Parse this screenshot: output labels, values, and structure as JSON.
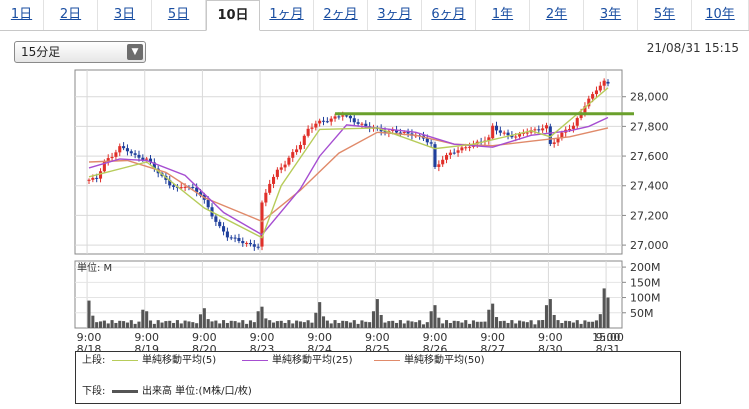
{
  "tabs": [
    {
      "label": "1日",
      "active": false
    },
    {
      "label": "2日",
      "active": false
    },
    {
      "label": "3日",
      "active": false
    },
    {
      "label": "5日",
      "active": false
    },
    {
      "label": "10日",
      "active": true
    },
    {
      "label": "1ヶ月",
      "active": false
    },
    {
      "label": "2ヶ月",
      "active": false
    },
    {
      "label": "3ヶ月",
      "active": false
    },
    {
      "label": "6ヶ月",
      "active": false
    },
    {
      "label": "1年",
      "active": false
    },
    {
      "label": "2年",
      "active": false
    },
    {
      "label": "3年",
      "active": false
    },
    {
      "label": "5年",
      "active": false
    },
    {
      "label": "10年",
      "active": false
    }
  ],
  "interval_select": {
    "value": "15分足"
  },
  "timestamp": "21/08/31 15:15",
  "legend": {
    "upper_label": "上段:",
    "lower_label": "下段:",
    "items": [
      {
        "label": "単純移動平均(5)",
        "color": "#b7cc5a"
      },
      {
        "label": "単純移動平均(25)",
        "color": "#a64ed1"
      },
      {
        "label": "単純移動平均(50)",
        "color": "#e08a6a"
      }
    ],
    "volume_item": {
      "label": "出来高 単位:(M株/口/枚)",
      "color": "#555555"
    }
  },
  "chart_data": [
    {
      "type": "candlestick",
      "y_ticks": [
        "28,000",
        "27,800",
        "27,600",
        "27,400",
        "27,200",
        "27,000"
      ],
      "y_tick_values": [
        28000,
        27800,
        27600,
        27400,
        27200,
        27000
      ],
      "ylim": [
        26940,
        28180
      ],
      "x_ticks_time": [
        "9:00",
        "9:00",
        "9:00",
        "9:00",
        "9:00",
        "9:00",
        "9:00",
        "9:00",
        "9:00",
        "9:00",
        "15:00"
      ],
      "x_ticks_date": [
        "8/18",
        "8/19",
        "8/20",
        "8/23",
        "8/24",
        "8/25",
        "8/26",
        "8/27",
        "8/30",
        "8/31",
        ""
      ],
      "colors": {
        "up": "#e0302a",
        "down": "#1f3f9c",
        "resistance": "#6aa02c"
      },
      "resistance_level": 27885,
      "close_path": [
        [
          0,
          27440
        ],
        [
          2,
          27450
        ],
        [
          4,
          27560
        ],
        [
          6,
          27600
        ],
        [
          8,
          27660
        ],
        [
          10,
          27640
        ],
        [
          12,
          27600
        ],
        [
          14,
          27580
        ],
        [
          15,
          27580
        ],
        [
          17,
          27520
        ],
        [
          19,
          27460
        ],
        [
          21,
          27410
        ],
        [
          23,
          27380
        ],
        [
          25,
          27400
        ],
        [
          27,
          27380
        ],
        [
          29,
          27340
        ],
        [
          30,
          27300
        ],
        [
          32,
          27200
        ],
        [
          34,
          27120
        ],
        [
          36,
          27060
        ],
        [
          38,
          27040
        ],
        [
          40,
          27020
        ],
        [
          42,
          27000
        ],
        [
          44,
          26990
        ],
        [
          45,
          27280
        ],
        [
          47,
          27420
        ],
        [
          49,
          27500
        ],
        [
          51,
          27550
        ],
        [
          53,
          27620
        ],
        [
          55,
          27680
        ],
        [
          57,
          27780
        ],
        [
          59,
          27820
        ],
        [
          60,
          27830
        ],
        [
          62,
          27840
        ],
        [
          64,
          27860
        ],
        [
          66,
          27880
        ],
        [
          68,
          27850
        ],
        [
          70,
          27820
        ],
        [
          72,
          27800
        ],
        [
          74,
          27790
        ],
        [
          75,
          27780
        ],
        [
          77,
          27760
        ],
        [
          79,
          27770
        ],
        [
          81,
          27760
        ],
        [
          83,
          27750
        ],
        [
          85,
          27740
        ],
        [
          87,
          27720
        ],
        [
          89,
          27680
        ],
        [
          90,
          27520
        ],
        [
          92,
          27580
        ],
        [
          94,
          27620
        ],
        [
          96,
          27640
        ],
        [
          98,
          27660
        ],
        [
          100,
          27680
        ],
        [
          102,
          27700
        ],
        [
          104,
          27720
        ],
        [
          105,
          27800
        ],
        [
          107,
          27760
        ],
        [
          109,
          27740
        ],
        [
          111,
          27730
        ],
        [
          113,
          27760
        ],
        [
          115,
          27770
        ],
        [
          117,
          27780
        ],
        [
          119,
          27800
        ],
        [
          120,
          27680
        ],
        [
          122,
          27720
        ],
        [
          124,
          27780
        ],
        [
          126,
          27800
        ],
        [
          128,
          27900
        ],
        [
          130,
          27980
        ],
        [
          132,
          28050
        ],
        [
          134,
          28100
        ],
        [
          135,
          28090
        ]
      ],
      "sma_5": [
        [
          0,
          27460
        ],
        [
          15,
          27560
        ],
        [
          30,
          27250
        ],
        [
          45,
          27050
        ],
        [
          50,
          27400
        ],
        [
          60,
          27780
        ],
        [
          75,
          27790
        ],
        [
          90,
          27650
        ],
        [
          100,
          27680
        ],
        [
          115,
          27770
        ],
        [
          120,
          27730
        ],
        [
          130,
          27950
        ],
        [
          135,
          28060
        ]
      ],
      "sma_25": [
        [
          0,
          27520
        ],
        [
          8,
          27580
        ],
        [
          15,
          27570
        ],
        [
          25,
          27470
        ],
        [
          35,
          27220
        ],
        [
          45,
          27070
        ],
        [
          55,
          27380
        ],
        [
          60,
          27600
        ],
        [
          67,
          27810
        ],
        [
          75,
          27790
        ],
        [
          85,
          27760
        ],
        [
          95,
          27680
        ],
        [
          105,
          27660
        ],
        [
          115,
          27740
        ],
        [
          125,
          27770
        ],
        [
          130,
          27800
        ],
        [
          135,
          27860
        ]
      ],
      "sma_50": [
        [
          0,
          27560
        ],
        [
          10,
          27570
        ],
        [
          20,
          27490
        ],
        [
          30,
          27320
        ],
        [
          45,
          27160
        ],
        [
          55,
          27370
        ],
        [
          65,
          27620
        ],
        [
          75,
          27760
        ],
        [
          85,
          27740
        ],
        [
          95,
          27680
        ],
        [
          105,
          27670
        ],
        [
          115,
          27700
        ],
        [
          125,
          27730
        ],
        [
          135,
          27790
        ]
      ]
    },
    {
      "type": "bar",
      "title": "単位: M",
      "y_ticks": [
        "200M",
        "150M",
        "100M",
        "50M"
      ],
      "y_tick_values": [
        200,
        150,
        100,
        50
      ],
      "ylim": [
        0,
        220
      ],
      "color": "#555555",
      "opening_spikes": [
        {
          "day": "8/18",
          "value": 90
        },
        {
          "day": "8/19",
          "value": 55
        },
        {
          "day": "8/20",
          "value": 65
        },
        {
          "day": "8/23",
          "value": 70
        },
        {
          "day": "8/24",
          "value": 85
        },
        {
          "day": "8/25",
          "value": 95
        },
        {
          "day": "8/26",
          "value": 75
        },
        {
          "day": "8/27",
          "value": 80
        },
        {
          "day": "8/30",
          "value": 95
        },
        {
          "day": "8/31",
          "value": 100
        }
      ],
      "closing_spikes": [
        {
          "day": "8/18",
          "value": 60
        },
        {
          "day": "8/19",
          "value": 45
        },
        {
          "day": "8/20",
          "value": 55
        },
        {
          "day": "8/23",
          "value": 50
        },
        {
          "day": "8/24",
          "value": 55
        },
        {
          "day": "8/25",
          "value": 55
        },
        {
          "day": "8/26",
          "value": 60
        },
        {
          "day": "8/27",
          "value": 75
        },
        {
          "day": "8/30",
          "value": 130
        },
        {
          "day": "8/31",
          "value": 210
        }
      ],
      "baseline_volume": 12
    }
  ]
}
